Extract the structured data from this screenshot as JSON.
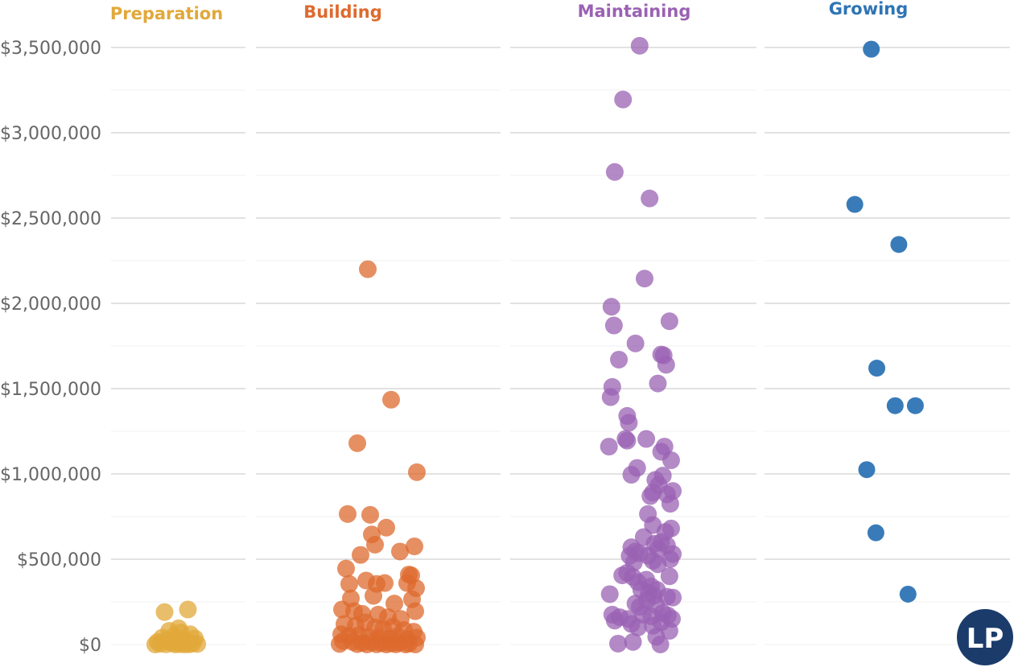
{
  "chart_data": {
    "type": "scatter",
    "title": "",
    "xlabel": "",
    "ylabel": "",
    "ylim": [
      0,
      3500000
    ],
    "y_ticks": [
      {
        "value": 0,
        "label": "$0"
      },
      {
        "value": 500000,
        "label": "$500,000"
      },
      {
        "value": 1000000,
        "label": "$1,000,000"
      },
      {
        "value": 1500000,
        "label": "$1,500,000"
      },
      {
        "value": 2000000,
        "label": "$2,000,000"
      },
      {
        "value": 2500000,
        "label": "$2,500,000"
      },
      {
        "value": 3000000,
        "label": "$3,000,000"
      },
      {
        "value": 3500000,
        "label": "$3,500,000"
      }
    ],
    "grid": true,
    "legend": "none",
    "series": [
      {
        "name": "Preparation",
        "color": "#E1A83A",
        "points": [
          [
            0.25,
            190000
          ],
          [
            0.75,
            205000
          ],
          [
            0.55,
            95000
          ],
          [
            0.35,
            80000
          ],
          [
            0.6,
            70000
          ],
          [
            0.8,
            60000
          ],
          [
            0.45,
            50000
          ],
          [
            0.2,
            40000
          ],
          [
            0.9,
            35000
          ],
          [
            0.5,
            30000
          ],
          [
            0.3,
            25000
          ],
          [
            0.7,
            20000
          ],
          [
            0.1,
            15000
          ],
          [
            0.65,
            12000
          ],
          [
            0.4,
            8000
          ],
          [
            0.85,
            6000
          ],
          [
            0.15,
            4000
          ],
          [
            0.95,
            3000
          ],
          [
            0.58,
            2000
          ],
          [
            0.28,
            1000
          ],
          [
            0.78,
            500
          ],
          [
            0.05,
            0
          ],
          [
            0.48,
            0
          ],
          [
            0.68,
            0
          ]
        ]
      },
      {
        "name": "Building",
        "color": "#DE6A2E",
        "points": [
          [
            0.37,
            2200000
          ],
          [
            0.66,
            1435000
          ],
          [
            0.24,
            1180000
          ],
          [
            0.98,
            1010000
          ],
          [
            0.12,
            765000
          ],
          [
            0.4,
            760000
          ],
          [
            0.6,
            685000
          ],
          [
            0.42,
            645000
          ],
          [
            0.46,
            585000
          ],
          [
            0.95,
            575000
          ],
          [
            0.77,
            545000
          ],
          [
            0.28,
            525000
          ],
          [
            0.1,
            445000
          ],
          [
            0.88,
            410000
          ],
          [
            0.91,
            405000
          ],
          [
            0.14,
            355000
          ],
          [
            0.35,
            375000
          ],
          [
            0.48,
            355000
          ],
          [
            0.58,
            360000
          ],
          [
            0.86,
            360000
          ],
          [
            0.97,
            330000
          ],
          [
            0.16,
            270000
          ],
          [
            0.44,
            285000
          ],
          [
            0.7,
            240000
          ],
          [
            0.92,
            265000
          ],
          [
            0.05,
            205000
          ],
          [
            0.2,
            195000
          ],
          [
            0.3,
            180000
          ],
          [
            0.5,
            175000
          ],
          [
            0.62,
            160000
          ],
          [
            0.78,
            150000
          ],
          [
            0.96,
            195000
          ],
          [
            0.08,
            120000
          ],
          [
            0.22,
            110000
          ],
          [
            0.34,
            130000
          ],
          [
            0.46,
            100000
          ],
          [
            0.56,
            90000
          ],
          [
            0.68,
            105000
          ],
          [
            0.82,
            85000
          ],
          [
            0.94,
            75000
          ],
          [
            0.04,
            60000
          ],
          [
            0.14,
            50000
          ],
          [
            0.26,
            55000
          ],
          [
            0.38,
            45000
          ],
          [
            0.52,
            40000
          ],
          [
            0.64,
            35000
          ],
          [
            0.74,
            50000
          ],
          [
            0.86,
            30000
          ],
          [
            0.98,
            40000
          ],
          [
            0.06,
            20000
          ],
          [
            0.18,
            15000
          ],
          [
            0.3,
            10000
          ],
          [
            0.42,
            12000
          ],
          [
            0.54,
            8000
          ],
          [
            0.66,
            6000
          ],
          [
            0.76,
            10000
          ],
          [
            0.88,
            5000
          ],
          [
            0.02,
            3000
          ],
          [
            0.24,
            2000
          ],
          [
            0.48,
            1000
          ],
          [
            0.72,
            500
          ],
          [
            0.96,
            0
          ],
          [
            0.36,
            0
          ],
          [
            0.6,
            0
          ],
          [
            0.84,
            0
          ]
        ]
      },
      {
        "name": "Maintaining",
        "color": "#9A62B3",
        "points": [
          [
            0.6,
            3510000
          ],
          [
            0.4,
            3195000
          ],
          [
            0.3,
            2770000
          ],
          [
            0.72,
            2615000
          ],
          [
            0.66,
            2145000
          ],
          [
            0.26,
            1980000
          ],
          [
            0.29,
            1870000
          ],
          [
            0.96,
            1895000
          ],
          [
            0.55,
            1765000
          ],
          [
            0.35,
            1670000
          ],
          [
            0.86,
            1700000
          ],
          [
            0.89,
            1695000
          ],
          [
            0.92,
            1640000
          ],
          [
            0.27,
            1510000
          ],
          [
            0.25,
            1450000
          ],
          [
            0.82,
            1530000
          ],
          [
            0.45,
            1340000
          ],
          [
            0.47,
            1300000
          ],
          [
            0.43,
            1205000
          ],
          [
            0.45,
            1195000
          ],
          [
            0.68,
            1205000
          ],
          [
            0.23,
            1160000
          ],
          [
            0.9,
            1160000
          ],
          [
            0.86,
            1130000
          ],
          [
            0.98,
            1080000
          ],
          [
            0.57,
            1035000
          ],
          [
            0.5,
            995000
          ],
          [
            0.79,
            965000
          ],
          [
            0.83,
            935000
          ],
          [
            0.88,
            990000
          ],
          [
            0.73,
            870000
          ],
          [
            0.76,
            890000
          ],
          [
            0.93,
            880000
          ],
          [
            1.0,
            900000
          ],
          [
            0.97,
            825000
          ],
          [
            0.7,
            765000
          ],
          [
            0.76,
            700000
          ],
          [
            0.98,
            680000
          ],
          [
            0.91,
            660000
          ],
          [
            0.65,
            630000
          ],
          [
            0.86,
            600000
          ],
          [
            0.78,
            590000
          ],
          [
            0.93,
            580000
          ],
          [
            0.5,
            570000
          ],
          [
            0.55,
            545000
          ],
          [
            0.6,
            535000
          ],
          [
            0.7,
            520000
          ],
          [
            0.82,
            560000
          ],
          [
            0.97,
            500000
          ],
          [
            0.48,
            520000
          ],
          [
            0.53,
            480000
          ],
          [
            0.76,
            490000
          ],
          [
            0.82,
            470000
          ],
          [
            1.0,
            530000
          ],
          [
            0.39,
            405000
          ],
          [
            0.45,
            420000
          ],
          [
            0.52,
            395000
          ],
          [
            0.58,
            365000
          ],
          [
            0.68,
            380000
          ],
          [
            0.74,
            340000
          ],
          [
            0.96,
            400000
          ],
          [
            0.62,
            320000
          ],
          [
            0.71,
            300000
          ],
          [
            0.81,
            320000
          ],
          [
            0.24,
            295000
          ],
          [
            0.77,
            285000
          ],
          [
            0.93,
            280000
          ],
          [
            1.0,
            275000
          ],
          [
            0.55,
            240000
          ],
          [
            0.6,
            220000
          ],
          [
            0.69,
            260000
          ],
          [
            0.8,
            230000
          ],
          [
            0.27,
            175000
          ],
          [
            0.36,
            160000
          ],
          [
            0.46,
            150000
          ],
          [
            0.64,
            175000
          ],
          [
            0.74,
            165000
          ],
          [
            0.88,
            185000
          ],
          [
            0.94,
            170000
          ],
          [
            0.99,
            150000
          ],
          [
            0.3,
            140000
          ],
          [
            0.5,
            120000
          ],
          [
            0.58,
            100000
          ],
          [
            0.76,
            110000
          ],
          [
            0.86,
            130000
          ],
          [
            0.96,
            80000
          ],
          [
            0.8,
            45000
          ],
          [
            0.52,
            15000
          ],
          [
            0.34,
            5000
          ],
          [
            0.85,
            0
          ]
        ]
      },
      {
        "name": "Growing",
        "color": "#2E74B5",
        "points": [
          [
            0.55,
            3490000
          ],
          [
            0.37,
            2580000
          ],
          [
            0.85,
            2345000
          ],
          [
            0.61,
            1620000
          ],
          [
            0.81,
            1400000
          ],
          [
            1.03,
            1400000
          ],
          [
            0.5,
            1025000
          ],
          [
            0.6,
            655000
          ],
          [
            0.95,
            295000
          ]
        ]
      }
    ]
  },
  "logo": {
    "text": "LP",
    "bg_color": "#1B3C6B"
  }
}
